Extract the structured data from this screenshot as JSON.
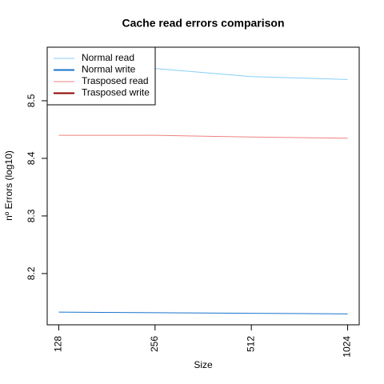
{
  "chart_data": {
    "type": "line",
    "title": "Cache read errors comparison",
    "x_label": "Size",
    "y_label": "nº Errors (log10)",
    "categories": [
      "128",
      "256",
      "512",
      "1024"
    ],
    "series": [
      {
        "name": "Normal read",
        "color": "#87cefa",
        "values": [
          8.564,
          8.556,
          8.542,
          8.537
        ]
      },
      {
        "name": "Normal write",
        "color": "#1874cd",
        "values": [
          8.133,
          8.132,
          8.131,
          8.13
        ]
      },
      {
        "name": "Trasposed read",
        "color": "#f08080",
        "values": [
          8.44,
          8.44,
          8.437,
          8.435
        ]
      },
      {
        "name": "Trasposed write",
        "color": "#8b0000",
        "values": [
          null,
          null,
          null,
          null
        ]
      }
    ],
    "ylim": [
      8.111,
      8.593
    ],
    "yticks": [
      8.2,
      8.3,
      8.4,
      8.5
    ],
    "legend": "top-left"
  }
}
